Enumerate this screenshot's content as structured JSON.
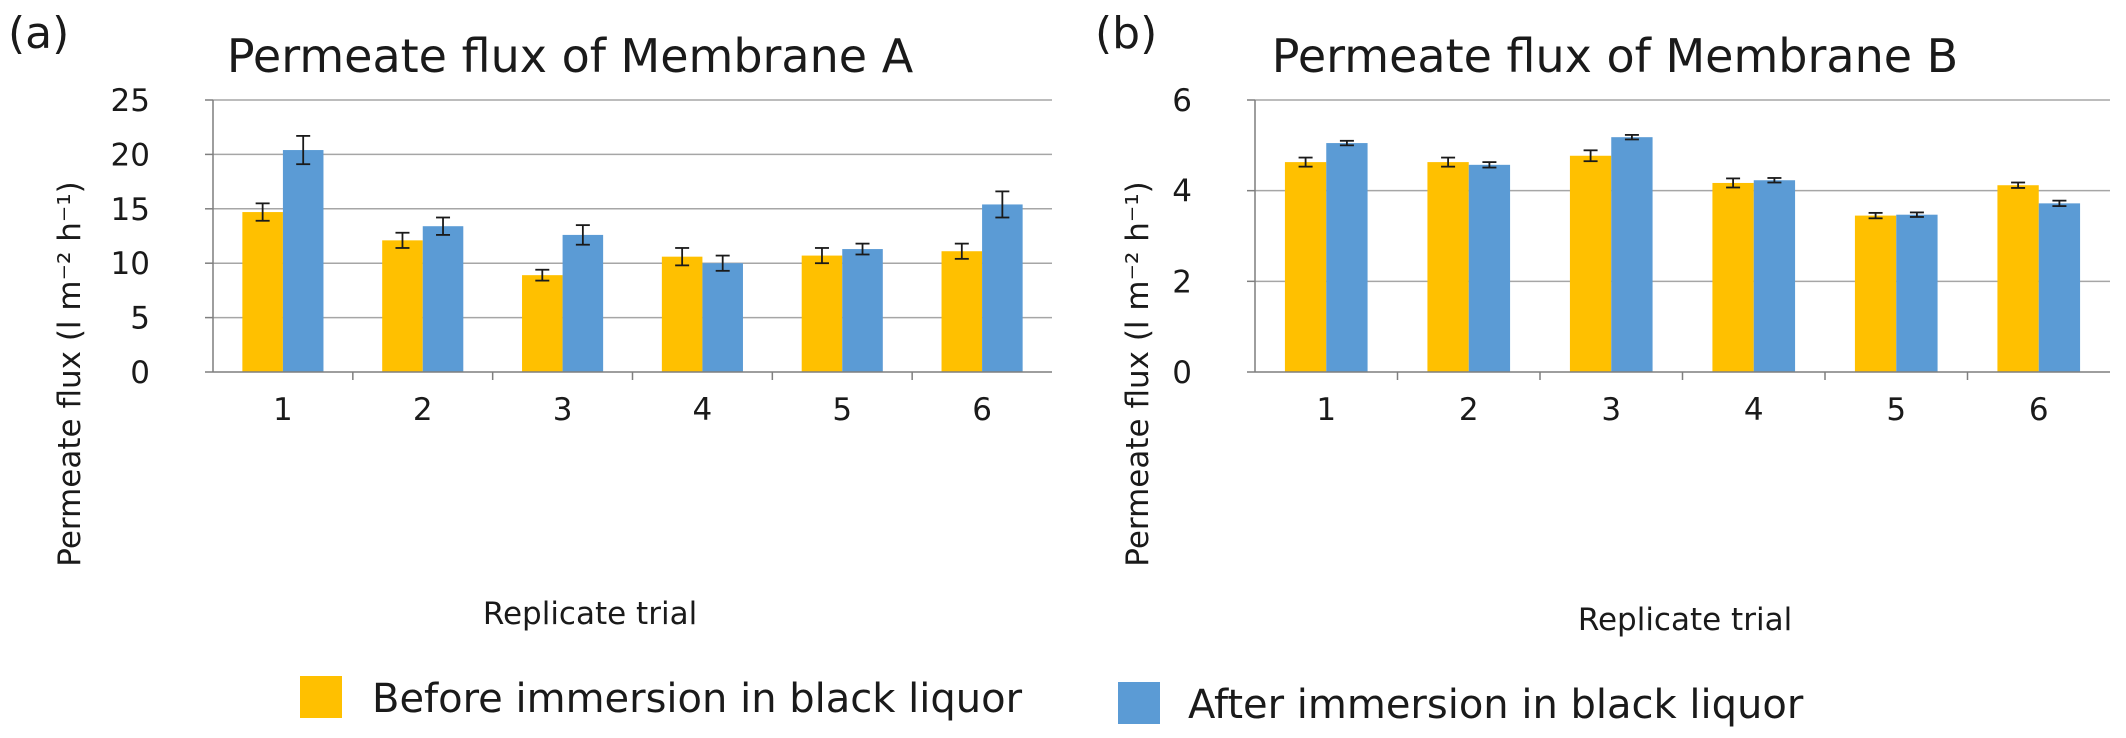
{
  "legend": {
    "before_label": "Before immersion in black liquor",
    "after_label": "After immersion in black liquor"
  },
  "colors": {
    "before": "#FFC000",
    "after": "#5B9BD5",
    "grid": "#a6a6a6",
    "axis": "#7f7f7f",
    "error": "#1a1a1a"
  },
  "chart_data": [
    {
      "panel_label": "(a)",
      "type": "bar",
      "title": "Permeate flux of Membrane A",
      "xlabel": "Replicate trial",
      "ylabel": "Permeate flux (l m⁻² h⁻¹)",
      "categories": [
        "1",
        "2",
        "3",
        "4",
        "5",
        "6"
      ],
      "ylim": [
        0,
        25
      ],
      "yticks": [
        "0",
        "5",
        "10",
        "15",
        "20",
        "25"
      ],
      "ytick_values": [
        0,
        5,
        10,
        15,
        20,
        25
      ],
      "grid": true,
      "series": [
        {
          "name": "Before immersion in black liquor",
          "values": [
            14.7,
            12.1,
            8.9,
            10.6,
            10.7,
            11.1
          ],
          "errors": [
            0.8,
            0.7,
            0.5,
            0.8,
            0.7,
            0.7
          ]
        },
        {
          "name": "After immersion in black liquor",
          "values": [
            20.4,
            13.4,
            12.6,
            10.0,
            11.3,
            15.4
          ],
          "errors": [
            1.3,
            0.8,
            0.9,
            0.7,
            0.5,
            1.2
          ]
        }
      ]
    },
    {
      "panel_label": "(b)",
      "type": "bar",
      "title": "Permeate flux of Membrane B",
      "xlabel": "Replicate trial",
      "ylabel": "Permeate flux (l m⁻² h⁻¹)",
      "categories": [
        "1",
        "2",
        "3",
        "4",
        "5",
        "6"
      ],
      "ylim": [
        0,
        6
      ],
      "yticks": [
        "0",
        "2",
        "4",
        "6"
      ],
      "ytick_values": [
        0,
        2,
        4,
        6
      ],
      "grid": true,
      "series": [
        {
          "name": "Before immersion in black liquor",
          "values": [
            4.63,
            4.63,
            4.77,
            4.17,
            3.45,
            4.12
          ],
          "errors": [
            0.1,
            0.1,
            0.12,
            0.1,
            0.06,
            0.06
          ]
        },
        {
          "name": "After immersion in black liquor",
          "values": [
            5.05,
            4.57,
            5.18,
            4.23,
            3.47,
            3.72
          ],
          "errors": [
            0.05,
            0.06,
            0.05,
            0.05,
            0.05,
            0.06
          ]
        }
      ]
    }
  ]
}
